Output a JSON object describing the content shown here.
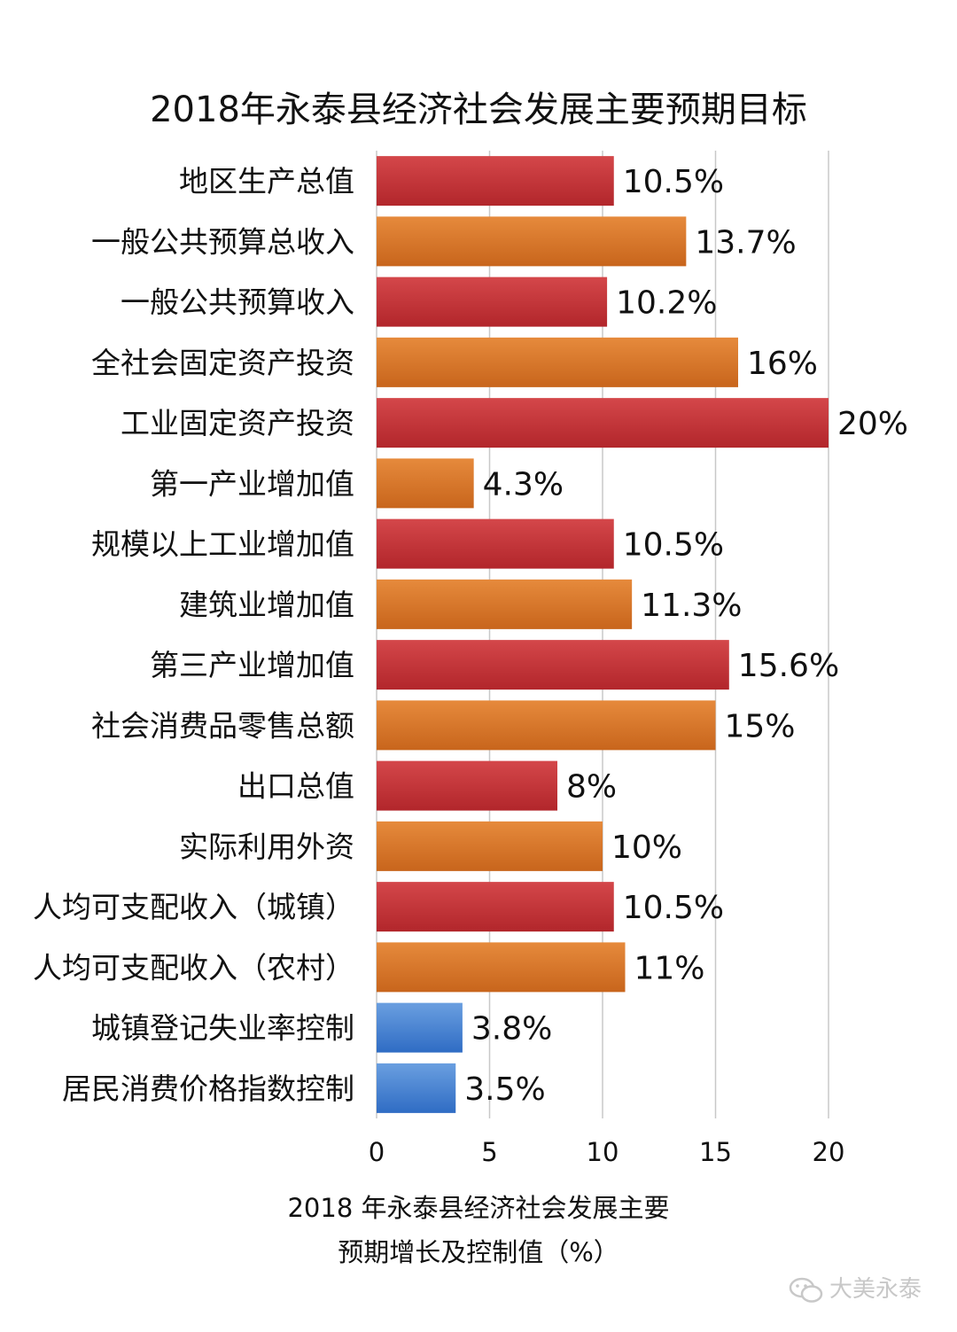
{
  "chart_data": {
    "type": "bar",
    "orientation": "horizontal",
    "title": "2018年永泰县经济社会发展主要预期目标",
    "xlabel_lines": [
      "2018 年永泰县经济社会发展主要",
      "预期增长及控制值（%）"
    ],
    "xlim": [
      0,
      20
    ],
    "xticks": [
      "0",
      "5",
      "10",
      "15",
      "20"
    ],
    "grid": "vertical",
    "categories": [
      "地区生产总值",
      "一般公共预算总收入",
      "一般公共预算收入",
      "全社会固定资产投资",
      "工业固定资产投资",
      "第一产业增加值",
      "规模以上工业增加值",
      "建筑业增加值",
      "第三产业增加值",
      "社会消费品零售总额",
      "出口总值",
      "实际利用外资",
      "人均可支配收入（城镇）",
      "人均可支配收入（农村）",
      "城镇登记失业率控制",
      "居民消费价格指数控制"
    ],
    "values": [
      10.5,
      13.7,
      10.2,
      16,
      20,
      4.3,
      10.5,
      11.3,
      15.6,
      15,
      8,
      10,
      10.5,
      11,
      3.8,
      3.5
    ],
    "data_labels": [
      "10.5%",
      "13.7%",
      "10.2%",
      "16%",
      "20%",
      "4.3%",
      "10.5%",
      "11.3%",
      "15.6%",
      "15%",
      "8%",
      "10%",
      "10.5%",
      "11%",
      "3.8%",
      "3.5%"
    ],
    "bar_colors": [
      "red",
      "orange",
      "red",
      "orange",
      "red",
      "orange",
      "red",
      "orange",
      "red",
      "orange",
      "red",
      "orange",
      "red",
      "orange",
      "blue",
      "blue"
    ],
    "palette": {
      "red": [
        "#d4474a",
        "#b2262b"
      ],
      "orange": [
        "#e68a3c",
        "#c8651c"
      ],
      "blue": [
        "#6a9fe0",
        "#2f6cc4"
      ],
      "grid": "#c8c8c8"
    }
  },
  "watermark": {
    "brand": "大美永泰",
    "icon": "wechat-icon"
  }
}
